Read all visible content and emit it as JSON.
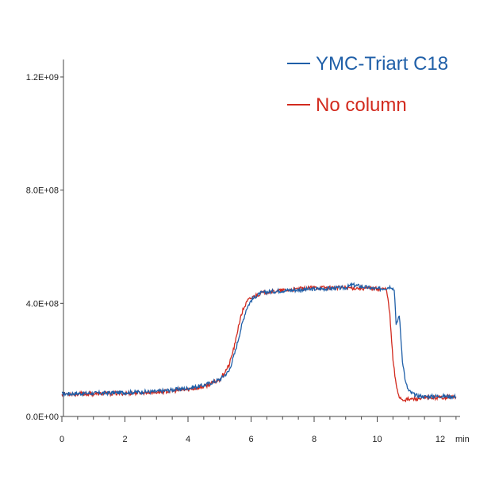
{
  "chart_data": {
    "type": "line",
    "title": "",
    "xlabel": "",
    "ylabel": "",
    "x_unit": "min",
    "xlim": [
      0,
      12.5
    ],
    "ylim": [
      0,
      1200000000
    ],
    "x_ticks": [
      0,
      2,
      4,
      6,
      8,
      10,
      12
    ],
    "x_tick_labels": [
      "0",
      "2",
      "4",
      "6",
      "8",
      "10",
      "12"
    ],
    "y_ticks": [
      0,
      400000000,
      800000000,
      1200000000
    ],
    "y_tick_labels": [
      "0.0E+00",
      "4.0E+08",
      "8.0E+08",
      "1.2E+09"
    ],
    "grid": false,
    "legend_position": "top-right",
    "series": [
      {
        "name": "YMC-Triart C18",
        "color": "#1f5fa8",
        "x": [
          0,
          1,
          2,
          3,
          4,
          4.5,
          5,
          5.3,
          5.5,
          5.7,
          5.85,
          6.0,
          6.15,
          6.3,
          6.5,
          7,
          8,
          9,
          9.2,
          10,
          10.3,
          10.45,
          10.55,
          10.6,
          10.7,
          10.8,
          10.9,
          11.0,
          11.2,
          11.5,
          12,
          12.5
        ],
        "y": [
          80000000,
          82000000,
          85000000,
          88000000,
          100000000,
          110000000,
          130000000,
          160000000,
          230000000,
          320000000,
          380000000,
          410000000,
          425000000,
          435000000,
          440000000,
          445000000,
          450000000,
          455000000,
          465000000,
          450000000,
          455000000,
          460000000,
          445000000,
          320000000,
          360000000,
          200000000,
          120000000,
          90000000,
          75000000,
          70000000,
          72000000,
          70000000
        ]
      },
      {
        "name": "No column",
        "color": "#d22a1e",
        "x": [
          0,
          1,
          2,
          3,
          4,
          4.5,
          5,
          5.3,
          5.5,
          5.6,
          5.75,
          5.9,
          6.1,
          6.3,
          6.5,
          7,
          8,
          9,
          10,
          10.3,
          10.4,
          10.5,
          10.6,
          10.7,
          10.8,
          11.0,
          11.5,
          12,
          12.5
        ],
        "y": [
          80000000,
          80000000,
          82000000,
          86000000,
          95000000,
          105000000,
          130000000,
          180000000,
          260000000,
          320000000,
          380000000,
          410000000,
          425000000,
          435000000,
          440000000,
          445000000,
          455000000,
          455000000,
          452000000,
          450000000,
          360000000,
          200000000,
          110000000,
          70000000,
          60000000,
          60000000,
          65000000,
          68000000,
          70000000
        ]
      }
    ]
  }
}
